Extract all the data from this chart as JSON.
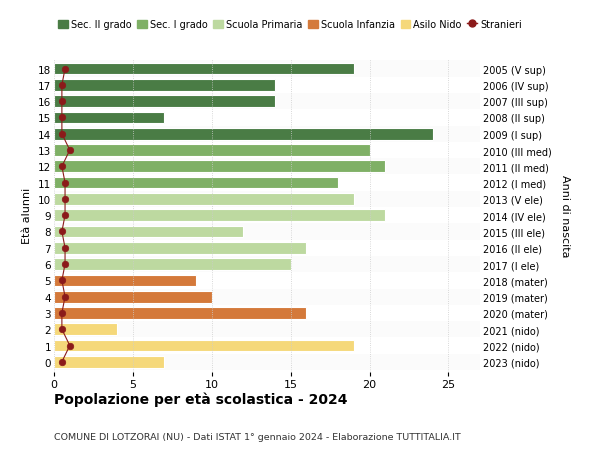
{
  "ages": [
    18,
    17,
    16,
    15,
    14,
    13,
    12,
    11,
    10,
    9,
    8,
    7,
    6,
    5,
    4,
    3,
    2,
    1,
    0
  ],
  "values": [
    19,
    14,
    14,
    7,
    24,
    20,
    21,
    18,
    19,
    21,
    12,
    16,
    15,
    9,
    10,
    16,
    4,
    19,
    7
  ],
  "year_labels": [
    "2005 (V sup)",
    "2006 (IV sup)",
    "2007 (III sup)",
    "2008 (II sup)",
    "2009 (I sup)",
    "2010 (III med)",
    "2011 (II med)",
    "2012 (I med)",
    "2013 (V ele)",
    "2014 (IV ele)",
    "2015 (III ele)",
    "2016 (II ele)",
    "2017 (I ele)",
    "2018 (mater)",
    "2019 (mater)",
    "2020 (mater)",
    "2021 (nido)",
    "2022 (nido)",
    "2023 (nido)"
  ],
  "bar_colors": [
    "#4a7c45",
    "#4a7c45",
    "#4a7c45",
    "#4a7c45",
    "#4a7c45",
    "#7fb066",
    "#7fb066",
    "#7fb066",
    "#bdd9a0",
    "#bdd9a0",
    "#bdd9a0",
    "#bdd9a0",
    "#bdd9a0",
    "#d4793a",
    "#d4793a",
    "#d4793a",
    "#f5d87a",
    "#f5d87a",
    "#f5d87a"
  ],
  "foreigner_x": [
    0.7,
    0.5,
    0.5,
    0.5,
    0.5,
    1.0,
    0.5,
    0.7,
    0.7,
    0.7,
    0.5,
    0.7,
    0.7,
    0.5,
    0.7,
    0.5,
    0.5,
    1.0,
    0.5
  ],
  "stranieri_color": "#8b1a1a",
  "xlim": [
    0,
    27
  ],
  "xticks": [
    0,
    5,
    10,
    15,
    20,
    25
  ],
  "title": "Popolazione per età scolastica - 2024",
  "subtitle": "COMUNE DI LOTZORAI (NU) - Dati ISTAT 1° gennaio 2024 - Elaborazione TUTTITALIA.IT",
  "ylabel_left": "Età alunni",
  "ylabel_right": "Anni di nascita",
  "legend_items": [
    {
      "label": "Sec. II grado",
      "color": "#4a7c45"
    },
    {
      "label": "Sec. I grado",
      "color": "#7fb066"
    },
    {
      "label": "Scuola Primaria",
      "color": "#bdd9a0"
    },
    {
      "label": "Scuola Infanzia",
      "color": "#d4793a"
    },
    {
      "label": "Asilo Nido",
      "color": "#f5d87a"
    },
    {
      "label": "Stranieri",
      "color": "#8b1a1a"
    }
  ],
  "bg_color": "#ffffff",
  "grid_color": "#cccccc"
}
